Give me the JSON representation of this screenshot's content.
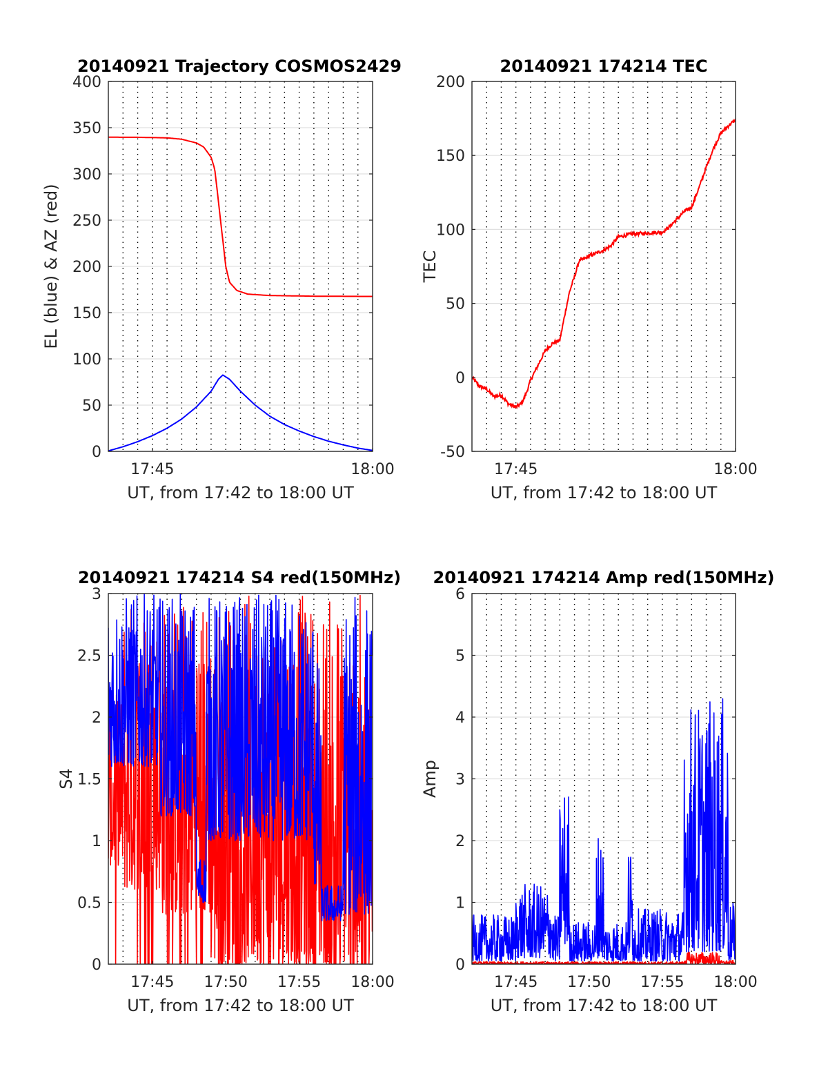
{
  "colors": {
    "red": "#ff0000",
    "blue": "#0000ff",
    "axis": "#262626",
    "grid": "#e0e0e0",
    "vgrid": "#000000"
  },
  "chart_data": [
    {
      "id": "trajectory",
      "type": "line",
      "title": "20140921 Trajectory COSMOS2429",
      "xlabel": "UT, from 17:42 to 18:00 UT",
      "ylabel": "EL (blue) & AZ (red)",
      "xlim": [
        "17:42",
        "18:00"
      ],
      "ylim": [
        0,
        400
      ],
      "yticks": [
        0,
        50,
        100,
        150,
        200,
        250,
        300,
        350,
        400
      ],
      "xticks": [
        {
          "t": "17:45",
          "label": "17:45"
        },
        {
          "t": "18:00",
          "label": "18:00"
        }
      ],
      "vgrid_times": [
        "17:43",
        "17:44",
        "17:45",
        "17:46",
        "17:47",
        "17:48",
        "17:49",
        "17:50",
        "17:51",
        "17:52",
        "17:53",
        "17:54",
        "17:55",
        "17:56",
        "17:57",
        "17:58",
        "17:59"
      ],
      "grid": "horizontal solid, vertical dotted",
      "series": [
        {
          "label": "AZ (red)",
          "color": "red",
          "style": "smooth",
          "points": [
            [
              "17:42",
              339.7
            ],
            [
              "17:44",
              339.6
            ],
            [
              "17:46",
              339.0
            ],
            [
              "17:47",
              337.5
            ],
            [
              "17:48",
              333.5
            ],
            [
              "17:48:30",
              329
            ],
            [
              "17:49",
              318
            ],
            [
              "17:49:15",
              305
            ],
            [
              "17:49:30",
              270
            ],
            [
              "17:49:45",
              235
            ],
            [
              "17:50",
              200
            ],
            [
              "17:50:15",
              183
            ],
            [
              "17:50:45",
              174
            ],
            [
              "17:51:30",
              170
            ],
            [
              "17:53",
              168.5
            ],
            [
              "17:56",
              167.8
            ],
            [
              "18:00",
              167.5
            ]
          ]
        },
        {
          "label": "EL (blue)",
          "color": "blue",
          "style": "smooth",
          "points": [
            [
              "17:42",
              0.5
            ],
            [
              "17:43",
              5
            ],
            [
              "17:44",
              10.5
            ],
            [
              "17:45",
              17
            ],
            [
              "17:46",
              25
            ],
            [
              "17:47",
              35
            ],
            [
              "17:48",
              48
            ],
            [
              "17:49",
              65
            ],
            [
              "17:49:30",
              78
            ],
            [
              "17:49:48",
              82.5
            ],
            [
              "17:50:15",
              78
            ],
            [
              "17:51",
              65
            ],
            [
              "17:52",
              50
            ],
            [
              "17:53",
              38
            ],
            [
              "17:54",
              29
            ],
            [
              "17:55",
              22
            ],
            [
              "17:56",
              16
            ],
            [
              "17:57",
              11
            ],
            [
              "17:58",
              7
            ],
            [
              "17:59",
              3.5
            ],
            [
              "18:00",
              1
            ]
          ]
        }
      ]
    },
    {
      "id": "tec",
      "type": "line",
      "title": "20140921 174214 TEC",
      "xlabel": "UT, from 17:42 to 18:00 UT",
      "ylabel": "TEC",
      "xlim": [
        "17:42",
        "18:00"
      ],
      "ylim": [
        -50,
        200
      ],
      "yticks": [
        -50,
        0,
        50,
        100,
        150,
        200
      ],
      "xticks": [
        {
          "t": "17:45",
          "label": "17:45"
        },
        {
          "t": "18:00",
          "label": "18:00"
        }
      ],
      "vgrid_times": [
        "17:43",
        "17:44",
        "17:45",
        "17:46",
        "17:47",
        "17:48",
        "17:49",
        "17:50",
        "17:51",
        "17:52",
        "17:53",
        "17:54",
        "17:55",
        "17:56",
        "17:57",
        "17:58",
        "17:59"
      ],
      "grid": "horizontal solid, vertical dotted",
      "series": [
        {
          "label": "TEC",
          "color": "red",
          "style": "noisy",
          "jitter": 1.2,
          "points": [
            [
              "17:42",
              0
            ],
            [
              "17:42:30",
              -6
            ],
            [
              "17:43",
              -8
            ],
            [
              "17:43:30",
              -13
            ],
            [
              "17:44",
              -12
            ],
            [
              "17:44:30",
              -18
            ],
            [
              "17:45",
              -20
            ],
            [
              "17:45:20",
              -18
            ],
            [
              "17:45:40",
              -12
            ],
            [
              "17:46",
              -2
            ],
            [
              "17:46:30",
              8
            ],
            [
              "17:47",
              18
            ],
            [
              "17:47:30",
              23
            ],
            [
              "17:48",
              25
            ],
            [
              "17:48:20",
              42
            ],
            [
              "17:48:40",
              58
            ],
            [
              "17:49",
              68
            ],
            [
              "17:49:20",
              79
            ],
            [
              "17:49:40",
              80
            ],
            [
              "17:50",
              82
            ],
            [
              "17:51",
              86
            ],
            [
              "17:51:30",
              89
            ],
            [
              "17:52",
              95
            ],
            [
              "17:52:30",
              96
            ],
            [
              "17:53",
              97
            ],
            [
              "17:54",
              97.5
            ],
            [
              "17:54:30",
              98
            ],
            [
              "17:55",
              98
            ],
            [
              "17:55:30",
              102
            ],
            [
              "17:56",
              107
            ],
            [
              "17:56:30",
              112
            ],
            [
              "17:57",
              115
            ],
            [
              "17:57:30",
              128
            ],
            [
              "17:58",
              142
            ],
            [
              "17:58:30",
              155
            ],
            [
              "17:59",
              165
            ],
            [
              "17:59:30",
              170
            ],
            [
              "18:00",
              174
            ]
          ]
        }
      ]
    },
    {
      "id": "s4",
      "type": "line",
      "title": "20140921 174214 S4 red(150MHz)",
      "xlabel": "UT, from 17:42 to 18:00 UT",
      "ylabel": "S4",
      "xlim": [
        "17:42",
        "18:00"
      ],
      "ylim": [
        0,
        3
      ],
      "yticks": [
        0,
        0.5,
        1,
        1.5,
        2,
        2.5,
        3
      ],
      "ytick_labels": [
        "0",
        "0.5",
        "1",
        "1.5",
        "2",
        "2.5",
        "3"
      ],
      "xticks": [
        {
          "t": "17:45",
          "label": "17:45"
        },
        {
          "t": "17:50",
          "label": "17:50"
        },
        {
          "t": "17:55",
          "label": "17:55"
        },
        {
          "t": "18:00",
          "label": "18:00"
        }
      ],
      "vgrid_times": [
        "17:43",
        "17:44",
        "17:45",
        "17:46",
        "17:47",
        "17:48",
        "17:49",
        "17:50",
        "17:51",
        "17:52",
        "17:53",
        "17:54",
        "17:55",
        "17:56",
        "17:57",
        "17:58",
        "17:59"
      ],
      "grid": "horizontal solid, vertical dotted",
      "series": [
        {
          "label": "red",
          "color": "red",
          "style": "spiky",
          "regimes": [
            {
              "from": "17:42",
              "to": "17:43",
              "lo": 0.8,
              "hi": 2.2,
              "drop": 0.15
            },
            {
              "from": "17:43",
              "to": "17:45:30",
              "lo": 0.6,
              "hi": 3.0,
              "drop": 0.35
            },
            {
              "from": "17:45:30",
              "to": "17:49",
              "lo": 0.4,
              "hi": 3.0,
              "drop": 0.5
            },
            {
              "from": "17:49",
              "to": "17:56",
              "lo": 0.0,
              "hi": 3.0,
              "drop": 0.5
            },
            {
              "from": "17:56",
              "to": "18:00",
              "lo": 0.0,
              "hi": 3.0,
              "drop": 0.6
            }
          ]
        },
        {
          "label": "blue",
          "color": "blue",
          "style": "spiky",
          "regimes": [
            {
              "from": "17:42",
              "to": "17:45:30",
              "lo": 1.6,
              "hi": 3.0,
              "drop": 0.0
            },
            {
              "from": "17:45:30",
              "to": "17:48",
              "lo": 1.2,
              "hi": 3.0,
              "drop": 0.0
            },
            {
              "from": "17:48",
              "to": "17:48:40",
              "lo": 0.5,
              "hi": 0.9,
              "drop": 0.0
            },
            {
              "from": "17:48:40",
              "to": "17:56",
              "lo": 1.0,
              "hi": 3.0,
              "drop": 0.0
            },
            {
              "from": "17:56",
              "to": "17:56:30",
              "lo": 0.6,
              "hi": 2.5,
              "drop": 0.0
            },
            {
              "from": "17:56:30",
              "to": "17:58",
              "lo": 0.35,
              "hi": 0.65,
              "drop": 0.0
            },
            {
              "from": "17:58",
              "to": "18:00",
              "lo": 0.4,
              "hi": 3.0,
              "drop": 0.0
            }
          ]
        }
      ]
    },
    {
      "id": "amp",
      "type": "line",
      "title": "20140921 174214 Amp red(150MHz)",
      "xlabel": "UT, from 17:42 to 18:00 UT",
      "ylabel": "Amp",
      "xlim": [
        "17:42",
        "18:00"
      ],
      "ylim": [
        0,
        6
      ],
      "yticks": [
        0,
        1,
        2,
        3,
        4,
        5,
        6
      ],
      "xticks": [
        {
          "t": "17:45",
          "label": "17:45"
        },
        {
          "t": "17:50",
          "label": "17:50"
        },
        {
          "t": "17:55",
          "label": "17:55"
        },
        {
          "t": "18:00",
          "label": "18:00"
        }
      ],
      "vgrid_times": [
        "17:43",
        "17:44",
        "17:45",
        "17:46",
        "17:47",
        "17:48",
        "17:49",
        "17:50",
        "17:51",
        "17:52",
        "17:53",
        "17:54",
        "17:55",
        "17:56",
        "17:57",
        "17:58",
        "17:59"
      ],
      "grid": "horizontal solid, vertical dotted",
      "series": [
        {
          "label": "red",
          "color": "red",
          "style": "spiky",
          "regimes": [
            {
              "from": "17:42",
              "to": "17:56:30",
              "lo": 0.0,
              "hi": 0.04,
              "drop": 0.0
            },
            {
              "from": "17:56:30",
              "to": "17:59",
              "lo": 0.0,
              "hi": 0.2,
              "drop": 0.0
            },
            {
              "from": "17:59",
              "to": "18:00",
              "lo": 0.0,
              "hi": 0.06,
              "drop": 0.0
            }
          ]
        },
        {
          "label": "blue",
          "color": "blue",
          "style": "spiky",
          "regimes": [
            {
              "from": "17:42",
              "to": "17:45",
              "lo": 0.05,
              "hi": 0.8,
              "drop": 0.0
            },
            {
              "from": "17:45",
              "to": "17:47:30",
              "lo": 0.1,
              "hi": 1.3,
              "drop": 0.0
            },
            {
              "from": "17:47:30",
              "to": "17:48",
              "lo": 0.05,
              "hi": 0.8,
              "drop": 0.0
            },
            {
              "from": "17:48",
              "to": "17:48:40",
              "lo": 0.3,
              "hi": 2.9,
              "drop": 0.0
            },
            {
              "from": "17:48:40",
              "to": "17:50:30",
              "lo": 0.05,
              "hi": 0.7,
              "drop": 0.0
            },
            {
              "from": "17:50:30",
              "to": "17:51",
              "lo": 0.1,
              "hi": 2.2,
              "drop": 0.0
            },
            {
              "from": "17:51",
              "to": "17:52:40",
              "lo": 0.05,
              "hi": 0.7,
              "drop": 0.0
            },
            {
              "from": "17:52:40",
              "to": "17:53",
              "lo": 0.1,
              "hi": 2.0,
              "drop": 0.0
            },
            {
              "from": "17:53",
              "to": "17:56:30",
              "lo": 0.05,
              "hi": 0.9,
              "drop": 0.0
            },
            {
              "from": "17:56:30",
              "to": "17:59:30",
              "lo": 0.2,
              "hi": 4.3,
              "drop": 0.0
            },
            {
              "from": "17:59:30",
              "to": "18:00",
              "lo": 0.05,
              "hi": 1.0,
              "drop": 0.0
            }
          ]
        }
      ]
    }
  ]
}
